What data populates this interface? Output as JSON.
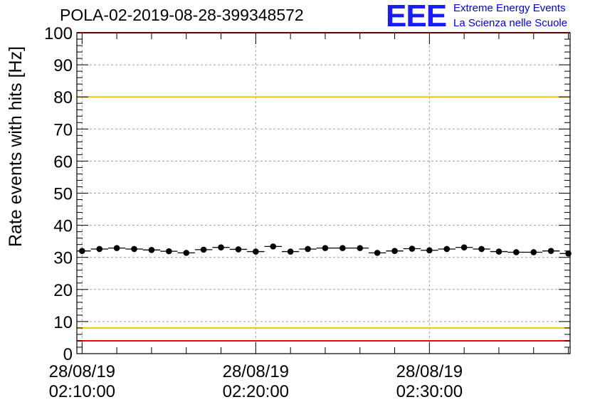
{
  "title": "POLA-02-2019-08-28-399348572",
  "logo": {
    "mark": "EEE",
    "line1": "Extreme Energy Events",
    "line2": "La Scienza nelle Scuole"
  },
  "colors": {
    "red_threshold": "#ff0000",
    "yellow_threshold": "#f0c800",
    "marker": "#000000",
    "grid": "#a0a0a0",
    "logo": "#1a1aff"
  },
  "chart_data": {
    "type": "scatter",
    "ylabel": "Rate events with hits [Hz]",
    "ylim": [
      0,
      100
    ],
    "yticks": [
      0,
      10,
      20,
      30,
      40,
      50,
      60,
      70,
      80,
      90,
      100
    ],
    "x_start_min": 9.7,
    "x_end_min": 38.1,
    "xticks": [
      {
        "minute": 10,
        "date": "28/08/19",
        "time": "02:10:00"
      },
      {
        "minute": 20,
        "date": "28/08/19",
        "time": "02:20:00"
      },
      {
        "minute": 30,
        "date": "28/08/19",
        "time": "02:30:00"
      }
    ],
    "grid": true,
    "thresholds": [
      {
        "value": 100,
        "color": "red"
      },
      {
        "value": 80,
        "color": "yellow"
      },
      {
        "value": 8,
        "color": "yellow"
      },
      {
        "value": 4,
        "color": "red"
      }
    ],
    "bin_width_min": 1,
    "series": [
      {
        "x": [
          10,
          11,
          12,
          13,
          14,
          15,
          16,
          17,
          18,
          19,
          20,
          21,
          22,
          23,
          24,
          25,
          26,
          27,
          28,
          29,
          30,
          31,
          32,
          33,
          34,
          35,
          36,
          37,
          38
        ],
        "values": [
          32.0,
          32.6,
          32.9,
          32.6,
          32.3,
          31.9,
          31.4,
          32.4,
          33.1,
          32.5,
          31.8,
          33.4,
          31.8,
          32.6,
          32.9,
          32.9,
          32.9,
          31.4,
          32.0,
          32.7,
          32.2,
          32.6,
          33.1,
          32.6,
          31.8,
          31.6,
          31.6,
          32.0,
          31.2
        ]
      }
    ]
  }
}
